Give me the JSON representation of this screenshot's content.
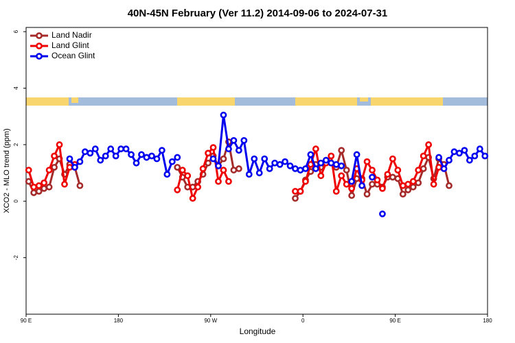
{
  "chart_data": {
    "type": "line",
    "title": "40N-45N February (Ver 11.2)   2014-09-06 to 2024-07-31",
    "x_label": "Longitude",
    "y_label": "XCO2 - MLO trend (ppm)",
    "xlim": [
      90,
      540
    ],
    "xticks": [
      {
        "value": 90,
        "label": "90 E"
      },
      {
        "value": 180,
        "label": "180"
      },
      {
        "value": 270,
        "label": "90 W"
      },
      {
        "value": 360,
        "label": "0"
      },
      {
        "value": 450,
        "label": "90 E"
      },
      {
        "value": 540,
        "label": "180"
      }
    ],
    "ylim": [
      -4,
      6.15
    ],
    "yticks": [
      -2,
      0,
      2,
      4,
      6
    ],
    "legend": "top-left",
    "grid": false,
    "series": [
      {
        "name": "Land Nadir",
        "color": "#a52a2a",
        "x": [
          92.5,
          97.5,
          102.5,
          107.5,
          112.5,
          117.5,
          122.5,
          127.5,
          132.5,
          137.5,
          142.5,
          null,
          237.5,
          242.5,
          247.5,
          252.5,
          257.5,
          262.5,
          267.5,
          272.5,
          277.5,
          282.5,
          287.5,
          292.5,
          297.5,
          null,
          352.5,
          357.5,
          362.5,
          367.5,
          372.5,
          377.5,
          382.5,
          387.5,
          392.5,
          397.5,
          402.5,
          407.5,
          412.5,
          417.5,
          422.5,
          427.5,
          432.5,
          437.5,
          442.5,
          447.5,
          452.5,
          457.5,
          462.5,
          467.5,
          472.5,
          477.5,
          482.5,
          487.5,
          492.5,
          497.5,
          502.5
        ],
        "values": [
          0.7,
          0.3,
          0.35,
          0.45,
          0.5,
          1.2,
          1.5,
          0.95,
          1.3,
          1.2,
          0.55,
          null,
          1.2,
          0.85,
          0.5,
          0.5,
          0.7,
          0.95,
          1.35,
          1.6,
          1.25,
          1.5,
          2.1,
          1.1,
          1.15,
          null,
          0.1,
          0.35,
          0.75,
          1.05,
          1.3,
          1.2,
          1.4,
          1.35,
          1.2,
          1.8,
          1.1,
          0.2,
          0.8,
          0.8,
          0.25,
          0.6,
          0.6,
          0.5,
          0.85,
          0.85,
          0.8,
          0.25,
          0.4,
          0.5,
          0.65,
          1.15,
          1.55,
          0.8,
          1.5,
          1.3,
          0.55
        ]
      },
      {
        "name": "Land Glint",
        "color": "#ee0000",
        "x": [
          92.5,
          97.5,
          102.5,
          107.5,
          112.5,
          117.5,
          122.5,
          127.5,
          132.5,
          137.5,
          null,
          237.5,
          242.5,
          247.5,
          252.5,
          257.5,
          262.5,
          267.5,
          272.5,
          277.5,
          282.5,
          287.5,
          null,
          352.5,
          357.5,
          362.5,
          367.5,
          372.5,
          377.5,
          382.5,
          387.5,
          392.5,
          397.5,
          402.5,
          407.5,
          412.5,
          417.5,
          422.5,
          427.5,
          432.5,
          437.5,
          442.5,
          447.5,
          452.5,
          457.5,
          462.5,
          467.5,
          472.5,
          477.5,
          482.5,
          487.5,
          492.5
        ],
        "values": [
          1.1,
          0.5,
          0.55,
          0.65,
          1.1,
          1.6,
          2.0,
          0.6,
          1.2,
          1.3,
          null,
          0.4,
          1.1,
          0.9,
          0.1,
          0.5,
          1.15,
          1.7,
          1.9,
          0.7,
          1.1,
          0.7,
          null,
          0.35,
          0.35,
          0.7,
          1.3,
          1.85,
          0.9,
          1.35,
          1.6,
          0.35,
          0.9,
          0.6,
          0.45,
          1.15,
          0.75,
          1.4,
          1.1,
          0.75,
          0.45,
          0.95,
          1.5,
          1.1,
          0.55,
          0.6,
          0.7,
          1.1,
          1.6,
          2.0,
          0.6,
          1.2
        ]
      },
      {
        "name": "Ocean Glint",
        "color": "#0000ee",
        "x": [
          132.5,
          137.5,
          142.5,
          147.5,
          152.5,
          157.5,
          162.5,
          167.5,
          172.5,
          177.5,
          182.5,
          187.5,
          192.5,
          197.5,
          202.5,
          207.5,
          212.5,
          217.5,
          222.5,
          227.5,
          232.5,
          237.5,
          null,
          272.5,
          277.5,
          282.5,
          287.5,
          292.5,
          297.5,
          302.5,
          307.5,
          312.5,
          317.5,
          322.5,
          327.5,
          332.5,
          337.5,
          342.5,
          347.5,
          352.5,
          357.5,
          362.5,
          367.5,
          372.5,
          377.5,
          382.5,
          387.5,
          392.5,
          397.5,
          null,
          407.5,
          412.5,
          417.5,
          null,
          427.5,
          null,
          437.5,
          null,
          492.5,
          497.5,
          502.5,
          507.5,
          512.5,
          517.5,
          522.5,
          527.5,
          532.5,
          537.5
        ],
        "values": [
          1.5,
          1.2,
          1.4,
          1.75,
          1.7,
          1.85,
          1.45,
          1.6,
          1.85,
          1.6,
          1.85,
          1.85,
          1.65,
          1.35,
          1.65,
          1.55,
          1.6,
          1.5,
          1.8,
          0.95,
          1.4,
          1.55,
          null,
          1.5,
          1.25,
          3.05,
          1.85,
          2.15,
          1.8,
          2.15,
          0.95,
          1.5,
          1.0,
          1.5,
          1.15,
          1.35,
          1.3,
          1.4,
          1.25,
          1.15,
          1.1,
          1.15,
          1.65,
          1.15,
          1.35,
          1.45,
          1.35,
          1.3,
          1.25,
          null,
          0.7,
          1.65,
          0.55,
          null,
          0.85,
          null,
          -0.45,
          null,
          1.55,
          1.15,
          1.45,
          1.75,
          1.7,
          1.8,
          1.45,
          1.6,
          1.85,
          1.6
        ]
      }
    ]
  }
}
